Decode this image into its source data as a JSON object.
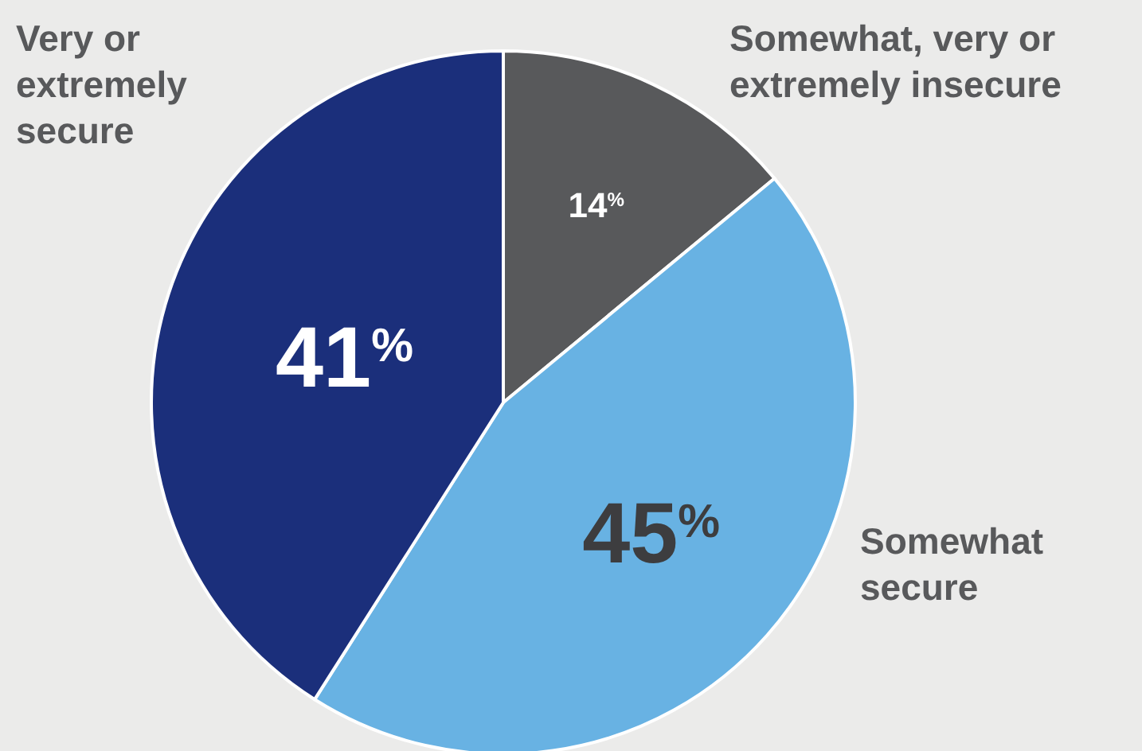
{
  "chart_data": {
    "type": "pie",
    "categories": [
      "Somewhat, very or extremely insecure",
      "Somewhat secure",
      "Very or extremely secure"
    ],
    "values": [
      14,
      45,
      41
    ],
    "colors": [
      "#58595b",
      "#68b2e3",
      "#1b2f7b"
    ],
    "value_labels": [
      "14$^{%}$",
      "45$^{%}$",
      "41$^{%}$"
    ],
    "legend": false
  }
}
